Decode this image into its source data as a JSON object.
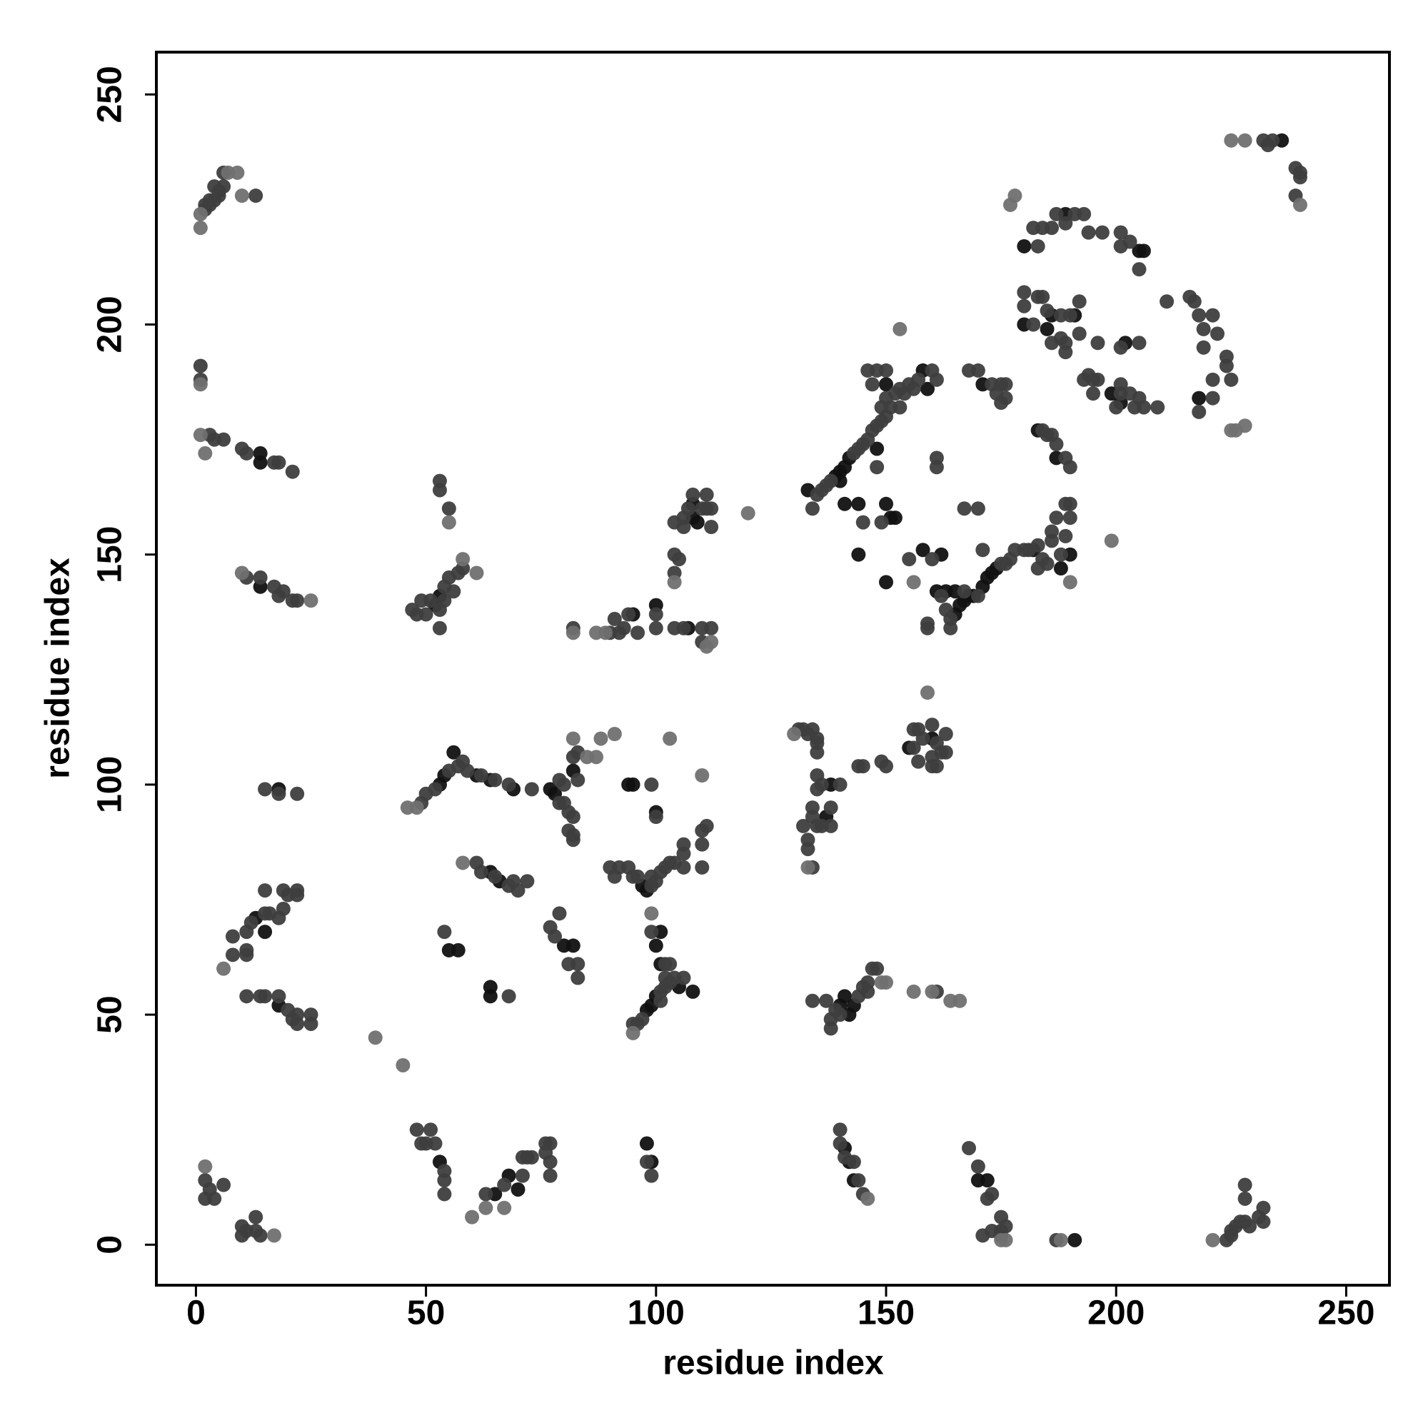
{
  "chart_data": {
    "type": "scatter",
    "xlabel": "residue index",
    "ylabel": "residue index",
    "xlim": [
      -8.6,
      259.4
    ],
    "ylim": [
      -8.8,
      259.2
    ],
    "xticks": [
      0,
      50,
      100,
      150,
      200,
      250
    ],
    "yticks": [
      0,
      50,
      100,
      150,
      200,
      250
    ],
    "series": [
      {
        "color": "#111111",
        "x": [
          14,
          14,
          14,
          18,
          13,
          15,
          18,
          52,
          53,
          53,
          54,
          56,
          61,
          64,
          69,
          64,
          66,
          55,
          57,
          64,
          64,
          53,
          65,
          68,
          70,
          77,
          78,
          82,
          80,
          82,
          95,
          100,
          107,
          108,
          108,
          109,
          97,
          98,
          100,
          94,
          95,
          98,
          99,
          100,
          105,
          108,
          101,
          100,
          101,
          98,
          99,
          137,
          138,
          140,
          141,
          142,
          143,
          141,
          142,
          143,
          155,
          160,
          170,
          172,
          191,
          133,
          139,
          140,
          141,
          142,
          158,
          140,
          141,
          144,
          144,
          148,
          150,
          150,
          151,
          152,
          150,
          158,
          162,
          159,
          161,
          165,
          166,
          167,
          168,
          169,
          171,
          172,
          173,
          174,
          163,
          165,
          182,
          188,
          187,
          183,
          190,
          171,
          180,
          189,
          205,
          206,
          180,
          185,
          186,
          191,
          199,
          201,
          202,
          218,
          236
        ],
        "values": [
          172,
          170,
          143,
          99,
          71,
          68,
          52,
          139,
          141,
          100,
          102,
          107,
          102,
          101,
          99,
          81,
          79,
          64,
          64,
          56,
          54,
          18,
          11,
          15,
          12,
          99,
          98,
          103,
          65,
          65,
          137,
          139,
          134,
          158,
          161,
          157,
          78,
          77,
          94,
          100,
          100,
          51,
          52,
          54,
          56,
          55,
          61,
          65,
          68,
          22,
          18,
          93,
          100,
          52,
          54,
          50,
          52,
          21,
          18,
          14,
          108,
          110,
          14,
          14,
          1,
          164,
          167,
          168,
          169,
          171,
          190,
          166,
          161,
          161,
          150,
          173,
          187,
          161,
          158,
          158,
          144,
          151,
          150,
          186,
          142,
          137,
          139,
          140,
          141,
          141,
          143,
          145,
          146,
          147,
          142,
          142,
          151,
          147,
          171,
          177,
          150,
          187,
          217,
          224,
          216,
          216,
          200,
          199,
          202,
          202,
          185,
          183,
          196,
          184,
          240
        ]
      },
      {
        "color": "#3e3e3e",
        "x": [
          2,
          3,
          4,
          5,
          6,
          13,
          2,
          3,
          5,
          4,
          6,
          3,
          4,
          6,
          10,
          11,
          17,
          18,
          21,
          1,
          1,
          11,
          14,
          17,
          18,
          19,
          21,
          22,
          15,
          18,
          22,
          8,
          8,
          11,
          11,
          12,
          15,
          15,
          16,
          18,
          19,
          19,
          20,
          22,
          22,
          11,
          11,
          14,
          15,
          18,
          20,
          21,
          22,
          25,
          25,
          22,
          2,
          2,
          3,
          4,
          6,
          10,
          10,
          11,
          13,
          13,
          14,
          47,
          48,
          49,
          50,
          51,
          53,
          54,
          54,
          55,
          56,
          57,
          58,
          53,
          53,
          53,
          55,
          49,
          50,
          52,
          55,
          57,
          58,
          59,
          62,
          65,
          68,
          73,
          61,
          62,
          65,
          68,
          69,
          70,
          72,
          54,
          68,
          48,
          49,
          50,
          51,
          52,
          54,
          54,
          54,
          63,
          67,
          71,
          71,
          72,
          73,
          76,
          76,
          77,
          77,
          77,
          79,
          79,
          80,
          80,
          81,
          81,
          82,
          83,
          82,
          83,
          82,
          82,
          77,
          78,
          79,
          81,
          83,
          83,
          82,
          90,
          91,
          92,
          93,
          94,
          96,
          100,
          100,
          104,
          106,
          110,
          110,
          112,
          104,
          104,
          105,
          106,
          106,
          107,
          108,
          110,
          111,
          111,
          112,
          112,
          104,
          90,
          91,
          92,
          94,
          95,
          96,
          99,
          99,
          100,
          101,
          102,
          103,
          104,
          106,
          106,
          106,
          110,
          110,
          110,
          111,
          100,
          99,
          95,
          96,
          97,
          101,
          101,
          102,
          102,
          103,
          104,
          106,
          102,
          99,
          103,
          98,
          99,
          131,
          132,
          133,
          134,
          135,
          135,
          132,
          133,
          133,
          134,
          134,
          134,
          135,
          136,
          138,
          138,
          135,
          135,
          135,
          136,
          140,
          134,
          137,
          138,
          138,
          139,
          140,
          144,
          145,
          146,
          146,
          147,
          148,
          161,
          140,
          140,
          141,
          143,
          144,
          145,
          144,
          145,
          149,
          150,
          156,
          157,
          157,
          158,
          160,
          160,
          160,
          161,
          162,
          163,
          163,
          156,
          161,
          168,
          170,
          172,
          173,
          175,
          175,
          175,
          176,
          173,
          171,
          187,
          224,
          225,
          225,
          226,
          227,
          228,
          228,
          228,
          229,
          231,
          232,
          232,
          134,
          135,
          136,
          137,
          138,
          143,
          144,
          145,
          146,
          147,
          148,
          149,
          150,
          151,
          152,
          153,
          155,
          157,
          160,
          161,
          145,
          148,
          149,
          150,
          150,
          147,
          146,
          148,
          153,
          154,
          156,
          149,
          160,
          155,
          161,
          161,
          159,
          159,
          162,
          163,
          164,
          164,
          170,
          175,
          176,
          177,
          178,
          180,
          181,
          171,
          167,
          170,
          167,
          183,
          183,
          184,
          185,
          186,
          186,
          187,
          188,
          189,
          190,
          190,
          189,
          190,
          189,
          187,
          186,
          185,
          184,
          168,
          170,
          173,
          174,
          175,
          175,
          176,
          176,
          182,
          183,
          184,
          186,
          187,
          189,
          191,
          193,
          194,
          197,
          201,
          201,
          203,
          205,
          180,
          180,
          182,
          183,
          184,
          185,
          186,
          188,
          188,
          189,
          189,
          190,
          192,
          192,
          193,
          194,
          195,
          195,
          196,
          196,
          200,
          201,
          201,
          201,
          203,
          204,
          205,
          205,
          206,
          209,
          211,
          216,
          217,
          218,
          218,
          219,
          219,
          221,
          221,
          221,
          222,
          224,
          224,
          225,
          232,
          233,
          234,
          239,
          239,
          240,
          240
        ],
        "values": [
          225,
          226,
          227,
          229,
          230,
          228,
          226,
          227,
          228,
          230,
          233,
          176,
          175,
          175,
          173,
          172,
          170,
          170,
          168,
          188,
          191,
          145,
          145,
          143,
          141,
          142,
          140,
          140,
          99,
          98,
          98,
          63,
          67,
          64,
          68,
          70,
          72,
          77,
          72,
          71,
          73,
          77,
          76,
          77,
          76,
          63,
          54,
          54,
          54,
          54,
          51,
          49,
          50,
          50,
          48,
          48,
          14,
          10,
          12,
          10,
          13,
          4,
          2,
          3,
          6,
          3,
          2,
          138,
          137,
          140,
          137,
          140,
          138,
          143,
          140,
          145,
          142,
          146,
          147,
          134,
          166,
          164,
          160,
          96,
          98,
          99,
          103,
          104,
          105,
          103,
          102,
          101,
          100,
          99,
          83,
          81,
          80,
          78,
          79,
          77,
          79,
          68,
          54,
          25,
          22,
          22,
          25,
          22,
          14,
          16,
          11,
          11,
          13,
          19,
          15,
          19,
          19,
          22,
          20,
          22,
          18,
          15,
          96,
          101,
          100,
          96,
          94,
          90,
          93,
          101,
          106,
          107,
          88,
          89,
          69,
          67,
          72,
          61,
          58,
          61,
          134,
          133,
          136,
          133,
          134,
          137,
          133,
          137,
          134,
          134,
          134,
          134,
          131,
          134,
          146,
          150,
          149,
          158,
          156,
          160,
          163,
          160,
          163,
          160,
          156,
          160,
          157,
          82,
          80,
          82,
          82,
          80,
          80,
          78,
          80,
          79,
          81,
          82,
          83,
          83,
          85,
          87,
          82,
          82,
          87,
          90,
          91,
          93,
          100,
          48,
          48,
          49,
          53,
          55,
          56,
          58,
          57,
          58,
          58,
          61,
          68,
          61,
          18,
          15,
          112,
          112,
          111,
          112,
          110,
          109,
          91,
          88,
          86,
          82,
          93,
          95,
          91,
          91,
          95,
          91,
          102,
          99,
          107,
          100,
          100,
          53,
          53,
          49,
          47,
          51,
          50,
          54,
          56,
          55,
          57,
          60,
          60,
          55,
          25,
          22,
          19,
          18,
          14,
          11,
          104,
          104,
          105,
          104,
          108,
          105,
          112,
          110,
          106,
          104,
          113,
          109,
          107,
          111,
          107,
          112,
          104,
          21,
          17,
          10,
          11,
          6,
          3,
          2,
          4,
          3,
          2,
          1,
          1,
          2,
          3,
          4,
          5,
          5,
          13,
          10,
          4,
          6,
          8,
          5,
          160,
          163,
          164,
          165,
          166,
          172,
          173,
          174,
          175,
          177,
          178,
          179,
          180,
          182,
          185,
          186,
          187,
          188,
          190,
          188,
          157,
          169,
          182,
          184,
          190,
          187,
          190,
          190,
          182,
          185,
          186,
          157,
          149,
          149,
          171,
          169,
          134,
          135,
          141,
          138,
          136,
          134,
          141,
          148,
          148,
          149,
          151,
          151,
          151,
          151,
          142,
          160,
          160,
          152,
          147,
          149,
          148,
          153,
          155,
          158,
          150,
          154,
          158,
          161,
          161,
          169,
          171,
          174,
          176,
          176,
          177,
          190,
          190,
          187,
          185,
          183,
          187,
          187,
          184,
          221,
          217,
          221,
          221,
          224,
          222,
          224,
          224,
          220,
          220,
          220,
          217,
          218,
          212,
          207,
          204,
          200,
          206,
          206,
          203,
          196,
          202,
          197,
          194,
          196,
          202,
          205,
          198,
          188,
          189,
          188,
          185,
          188,
          196,
          182,
          185,
          187,
          195,
          185,
          182,
          184,
          196,
          182,
          182,
          205,
          206,
          205,
          202,
          181,
          195,
          199,
          202,
          188,
          184,
          198,
          193,
          191,
          188,
          240,
          239,
          240,
          228,
          234,
          233,
          232
        ]
      },
      {
        "color": "#707070",
        "x": [
          1,
          1,
          7,
          9,
          10,
          1,
          2,
          1,
          10,
          25,
          6,
          39,
          45,
          2,
          17,
          46,
          48,
          58,
          61,
          55,
          58,
          60,
          63,
          67,
          82,
          85,
          87,
          88,
          91,
          82,
          87,
          89,
          112,
          111,
          120,
          104,
          95,
          99,
          103,
          110,
          159,
          153,
          177,
          178,
          199,
          225,
          226,
          228,
          240,
          225,
          228,
          156,
          190,
          175,
          176,
          188,
          221,
          146,
          166,
          164,
          160,
          156,
          150,
          149,
          130,
          133
        ],
        "values": [
          221,
          224,
          233,
          233,
          228,
          176,
          172,
          187,
          146,
          140,
          60,
          45,
          39,
          17,
          2,
          95,
          95,
          149,
          146,
          157,
          83,
          6,
          8,
          8,
          110,
          106,
          106,
          110,
          111,
          133,
          133,
          133,
          131,
          130,
          159,
          144,
          46,
          72,
          110,
          102,
          120,
          199,
          226,
          228,
          153,
          177,
          177,
          178,
          226,
          240,
          240,
          144,
          144,
          1,
          1,
          1,
          1,
          10,
          53,
          53,
          55,
          55,
          57,
          57,
          111,
          82
        ]
      }
    ]
  }
}
